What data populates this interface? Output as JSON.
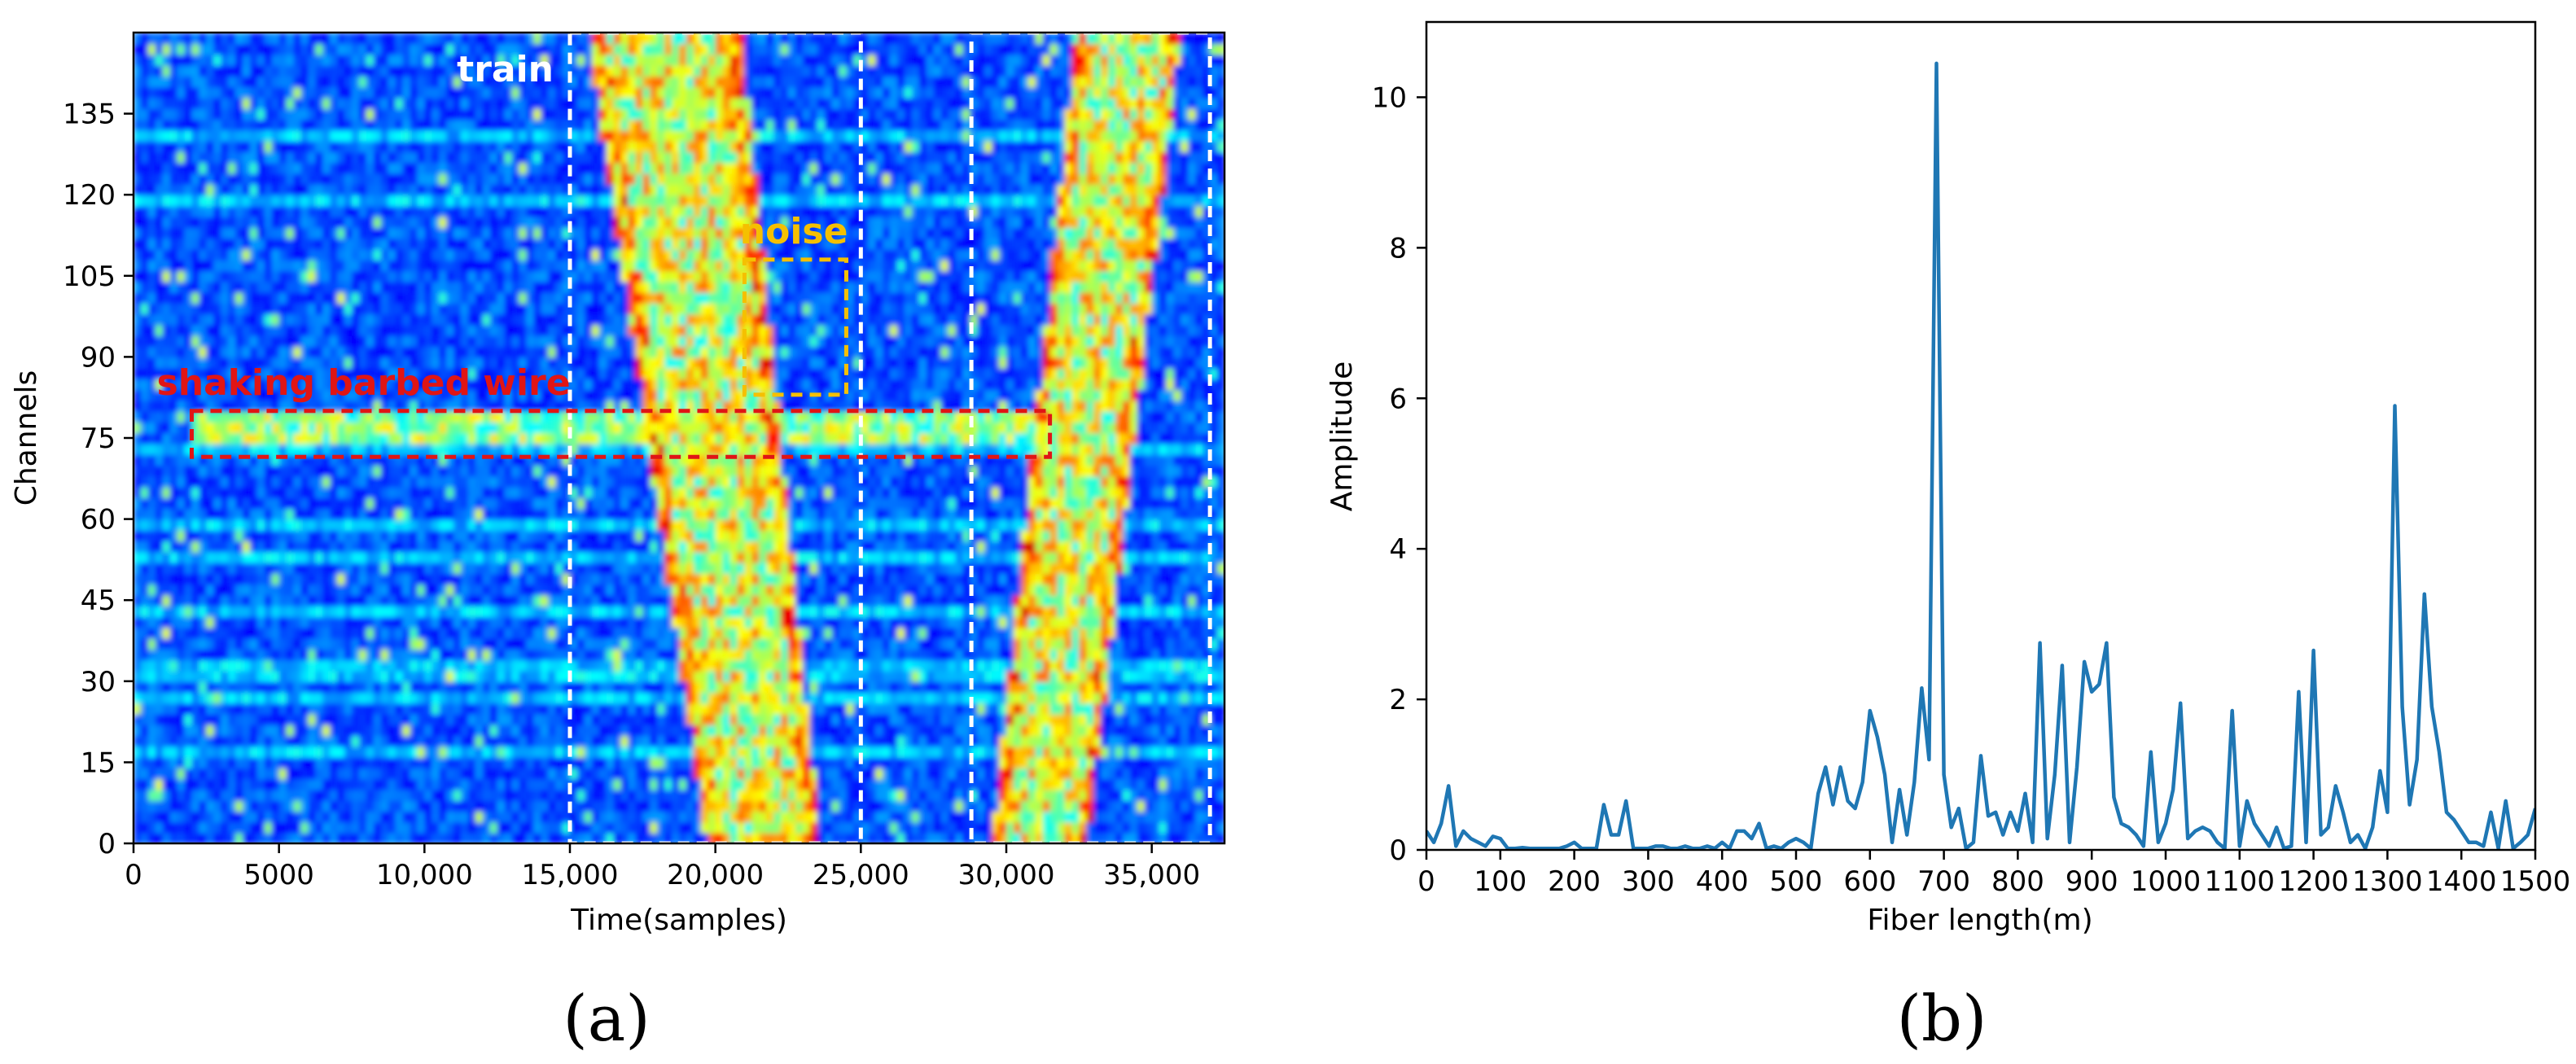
{
  "chart_data": [
    {
      "type": "heatmap",
      "panel_label": "(a)",
      "xlabel": "Time(samples)",
      "ylabel": "Channels",
      "xlim": [
        0,
        37500
      ],
      "ylim": [
        0,
        150
      ],
      "xticks": [
        0,
        5000,
        10000,
        15000,
        20000,
        25000,
        30000,
        35000
      ],
      "xtick_labels": [
        "0",
        "5000",
        "10,000",
        "15,000",
        "20,000",
        "25,000",
        "30,000",
        "35,000"
      ],
      "yticks": [
        0,
        15,
        30,
        45,
        60,
        75,
        90,
        105,
        120,
        135
      ],
      "ytick_labels": [
        "0",
        "15",
        "30",
        "45",
        "60",
        "75",
        "90",
        "105",
        "120",
        "135"
      ],
      "colormap": "jet",
      "colors": {
        "low": "#0a2ad8",
        "mid": "#39d27a",
        "high": "#d01a10"
      },
      "bands": [
        {
          "kind": "train",
          "x_at_bottom": [
            19700,
            23600
          ],
          "x_at_top": [
            15600,
            20900
          ],
          "intensity": 0.7
        },
        {
          "kind": "train",
          "x_at_bottom": [
            29500,
            32800
          ],
          "x_at_top": [
            32400,
            36000
          ],
          "intensity": 0.7
        },
        {
          "kind": "horizontal",
          "y_range": [
            74,
            79
          ],
          "x_range": [
            2000,
            31500
          ],
          "intensity": 0.6
        }
      ],
      "annotations": [
        {
          "text": "train",
          "color": "#ffffff",
          "box": {
            "x0": 15000,
            "x1": 25000,
            "y0": 0,
            "y1": 150
          }
        },
        {
          "text": "",
          "color": "#ffffff",
          "box": {
            "x0": 28800,
            "x1": 37000,
            "y0": 0,
            "y1": 150
          }
        },
        {
          "text": "noise",
          "color": "#f5c000",
          "box": {
            "x0": 21000,
            "x1": 24500,
            "y0": 83,
            "y1": 108
          }
        },
        {
          "text": "shaking barbed wire",
          "color": "#e01515",
          "box": {
            "x0": 2000,
            "x1": 31500,
            "y0": 71.5,
            "y1": 80
          }
        }
      ]
    },
    {
      "type": "line",
      "panel_label": "(b)",
      "xlabel": "Fiber length(m)",
      "ylabel": "Amplitude",
      "xlim": [
        0,
        1500
      ],
      "ylim": [
        0,
        11
      ],
      "xticks": [
        0,
        100,
        200,
        300,
        400,
        500,
        600,
        700,
        800,
        900,
        1000,
        1100,
        1200,
        1300,
        1400,
        1500
      ],
      "yticks": [
        0,
        2,
        4,
        6,
        8,
        10
      ],
      "color": "#1f77b4",
      "x": [
        0,
        10,
        20,
        30,
        40,
        50,
        60,
        70,
        80,
        90,
        100,
        110,
        120,
        130,
        140,
        150,
        160,
        170,
        180,
        190,
        200,
        210,
        220,
        230,
        240,
        250,
        260,
        270,
        280,
        290,
        300,
        310,
        320,
        330,
        340,
        350,
        360,
        370,
        380,
        390,
        400,
        410,
        420,
        430,
        440,
        450,
        460,
        470,
        480,
        490,
        500,
        510,
        520,
        530,
        540,
        550,
        560,
        570,
        580,
        590,
        600,
        610,
        620,
        630,
        640,
        650,
        660,
        670,
        680,
        690,
        700,
        710,
        720,
        730,
        740,
        750,
        760,
        770,
        780,
        790,
        800,
        810,
        820,
        830,
        840,
        850,
        860,
        870,
        880,
        890,
        900,
        910,
        920,
        930,
        940,
        950,
        960,
        970,
        980,
        990,
        1000,
        1010,
        1020,
        1030,
        1040,
        1050,
        1060,
        1070,
        1080,
        1090,
        1100,
        1110,
        1120,
        1130,
        1140,
        1150,
        1160,
        1170,
        1180,
        1190,
        1200,
        1210,
        1220,
        1230,
        1240,
        1250,
        1260,
        1270,
        1280,
        1290,
        1300,
        1310,
        1320,
        1330,
        1340,
        1350,
        1360,
        1370,
        1380,
        1390,
        1400,
        1410,
        1420,
        1430,
        1440,
        1450,
        1460,
        1470,
        1480,
        1490,
        1500
      ],
      "y": [
        0.25,
        0.1,
        0.35,
        0.85,
        0.05,
        0.25,
        0.15,
        0.1,
        0.05,
        0.18,
        0.15,
        0.02,
        0.02,
        0.03,
        0.02,
        0.02,
        0.02,
        0.02,
        0.02,
        0.05,
        0.1,
        0.02,
        0.02,
        0.02,
        0.6,
        0.2,
        0.2,
        0.65,
        0.02,
        0.02,
        0.02,
        0.05,
        0.05,
        0.02,
        0.02,
        0.05,
        0.02,
        0.02,
        0.05,
        0.02,
        0.1,
        0.02,
        0.25,
        0.25,
        0.15,
        0.35,
        0.02,
        0.05,
        0.02,
        0.1,
        0.15,
        0.1,
        0.02,
        0.75,
        1.1,
        0.6,
        1.1,
        0.65,
        0.55,
        0.9,
        1.85,
        1.5,
        1.0,
        0.1,
        0.8,
        0.2,
        0.9,
        2.15,
        1.2,
        10.45,
        1.0,
        0.3,
        0.55,
        0.02,
        0.1,
        1.25,
        0.45,
        0.5,
        0.2,
        0.5,
        0.25,
        0.75,
        0.1,
        2.75,
        0.15,
        1.0,
        2.45,
        0.1,
        1.1,
        2.5,
        2.1,
        2.2,
        2.75,
        0.7,
        0.35,
        0.3,
        0.2,
        0.05,
        1.3,
        0.1,
        0.35,
        0.8,
        1.95,
        0.15,
        0.25,
        0.3,
        0.25,
        0.1,
        0.02,
        1.85,
        0.05,
        0.65,
        0.35,
        0.2,
        0.05,
        0.3,
        0.02,
        0.05,
        2.1,
        0.1,
        2.65,
        0.2,
        0.3,
        0.85,
        0.5,
        0.1,
        0.2,
        0.02,
        0.3,
        1.05,
        0.5,
        5.9,
        1.9,
        0.6,
        1.2,
        3.4,
        1.9,
        1.3,
        0.5,
        0.4,
        0.25,
        0.1,
        0.1,
        0.05,
        0.5,
        0.02,
        0.65,
        0.02,
        0.1,
        0.2,
        0.55
      ]
    }
  ],
  "figure": {
    "panel_a": {
      "train_label": "train",
      "noise_label": "noise",
      "wire_label": "shaking barbed wire"
    }
  }
}
